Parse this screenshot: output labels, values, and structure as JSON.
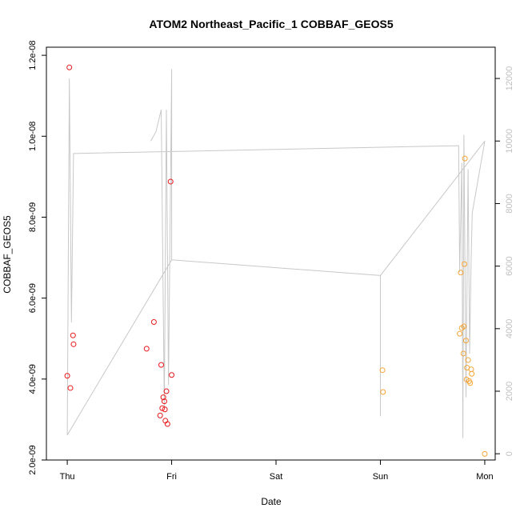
{
  "chart_data": {
    "type": "scatter",
    "title": "ATOM2 Northeast_Pacific_1 COBBAF_GEOS5",
    "xlabel": "Date",
    "ylabel": "COBBAF_GEOS5",
    "x_ticks": [
      {
        "x": 0,
        "label": "Thu"
      },
      {
        "x": 1,
        "label": "Fri"
      },
      {
        "x": 2,
        "label": "Sat"
      },
      {
        "x": 3,
        "label": "Sun"
      },
      {
        "x": 4,
        "label": "Mon"
      }
    ],
    "xlim": [
      -0.2,
      4.1
    ],
    "ylim": [
      2e-09,
      1.22e-08
    ],
    "y_ticks": [
      {
        "value": 2e-09,
        "label": "2.0e-09"
      },
      {
        "value": 4e-09,
        "label": "4.0e-09"
      },
      {
        "value": 6e-09,
        "label": "6.0e-09"
      },
      {
        "value": 8e-09,
        "label": "8.0e-09"
      },
      {
        "value": 1e-08,
        "label": "1.0e-08"
      },
      {
        "value": 1.2e-08,
        "label": "1.2e-08"
      }
    ],
    "y2lim": [
      -200,
      13000
    ],
    "y2_ticks": [
      {
        "value": 0,
        "label": "0"
      },
      {
        "value": 2000,
        "label": "2000"
      },
      {
        "value": 4000,
        "label": "4000"
      },
      {
        "value": 6000,
        "label": "6000"
      },
      {
        "value": 8000,
        "label": "8000"
      },
      {
        "value": 10000,
        "label": "10000"
      },
      {
        "value": 12000,
        "label": "12000"
      }
    ],
    "grid": false,
    "colors": {
      "red": "#e8191c",
      "orange": "#f4a535",
      "line": "#c8c8c8"
    },
    "points_red": [
      {
        "x": 0.0,
        "y": 4.08e-09
      },
      {
        "x": 0.02,
        "y": 1.17e-08
      },
      {
        "x": 0.03,
        "y": 3.78e-09
      },
      {
        "x": 0.055,
        "y": 5.08e-09
      },
      {
        "x": 0.06,
        "y": 4.86e-09
      },
      {
        "x": 0.76,
        "y": 4.75e-09
      },
      {
        "x": 0.83,
        "y": 5.41e-09
      },
      {
        "x": 0.89,
        "y": 3.1e-09
      },
      {
        "x": 0.9,
        "y": 4.35e-09
      },
      {
        "x": 0.91,
        "y": 3.28e-09
      },
      {
        "x": 0.92,
        "y": 3.55e-09
      },
      {
        "x": 0.93,
        "y": 3.45e-09
      },
      {
        "x": 0.935,
        "y": 3.25e-09
      },
      {
        "x": 0.94,
        "y": 2.97e-09
      },
      {
        "x": 0.95,
        "y": 3.7e-09
      },
      {
        "x": 0.96,
        "y": 2.89e-09
      },
      {
        "x": 0.99,
        "y": 8.88e-09
      },
      {
        "x": 1.0,
        "y": 4.1e-09
      }
    ],
    "points_orange": [
      {
        "x": 3.02,
        "y": 4.22e-09
      },
      {
        "x": 3.025,
        "y": 3.68e-09
      },
      {
        "x": 3.76,
        "y": 5.12e-09
      },
      {
        "x": 3.77,
        "y": 6.63e-09
      },
      {
        "x": 3.78,
        "y": 5.26e-09
      },
      {
        "x": 3.795,
        "y": 4.63e-09
      },
      {
        "x": 3.8,
        "y": 5.3e-09
      },
      {
        "x": 3.805,
        "y": 6.84e-09
      },
      {
        "x": 3.81,
        "y": 9.45e-09
      },
      {
        "x": 3.82,
        "y": 4.95e-09
      },
      {
        "x": 3.825,
        "y": 3.99e-09
      },
      {
        "x": 3.83,
        "y": 4.28e-09
      },
      {
        "x": 3.84,
        "y": 4.47e-09
      },
      {
        "x": 3.85,
        "y": 3.95e-09
      },
      {
        "x": 3.86,
        "y": 3.9e-09
      },
      {
        "x": 3.87,
        "y": 4.24e-09
      },
      {
        "x": 3.875,
        "y": 4.13e-09
      },
      {
        "x": 4.0,
        "y": 2.15e-09
      }
    ],
    "altitude_line": [
      {
        "x": 0.0,
        "y2": 600
      },
      {
        "x": 0.02,
        "y2": 12000
      },
      {
        "x": 0.04,
        "y2": 4200
      },
      {
        "x": 0.06,
        "y2": 9600
      },
      {
        "x": 3.75,
        "y2": 9850
      },
      {
        "x": 3.76,
        "y2": 5800
      },
      {
        "x": 3.78,
        "y2": 9300
      },
      {
        "x": 3.79,
        "y2": 500
      },
      {
        "x": 3.8,
        "y2": 10200
      },
      {
        "x": 3.82,
        "y2": 1800
      },
      {
        "x": 3.84,
        "y2": 9100
      },
      {
        "x": 3.855,
        "y2": 3200
      },
      {
        "x": 3.87,
        "y2": 6300
      },
      {
        "x": 3.88,
        "y2": 7700
      },
      {
        "x": 4.0,
        "y2": 10000
      },
      {
        "x": 3.0,
        "y2": 5700
      },
      {
        "x": 3.0,
        "y2": 1200
      },
      {
        "x": 3.0,
        "y2": 5700
      },
      {
        "x": 1.0,
        "y2": 6200
      },
      {
        "x": 0.0,
        "y2": 600
      },
      {
        "x": 1.0,
        "y2": 6200
      },
      {
        "x": 1.0,
        "y2": 12300
      },
      {
        "x": 0.97,
        "y2": 2200
      },
      {
        "x": 0.95,
        "y2": 11000
      },
      {
        "x": 0.93,
        "y2": 1500
      },
      {
        "x": 0.9,
        "y2": 11000
      },
      {
        "x": 0.85,
        "y2": 10300
      },
      {
        "x": 0.8,
        "y2": 10000
      }
    ]
  }
}
